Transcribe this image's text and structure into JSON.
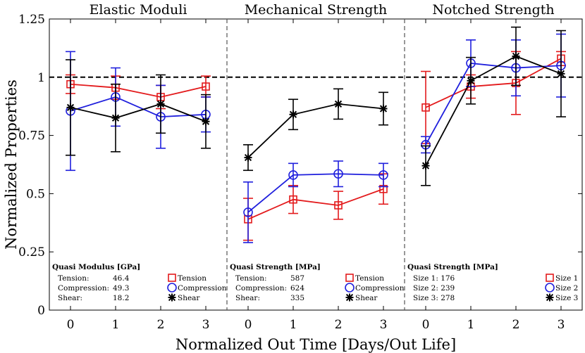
{
  "chart_data": {
    "type": "line",
    "xlabel": "Normalized Out Time [Days/Out Life]",
    "ylabel": "Normalized Properties",
    "ylim": [
      0,
      1.25
    ],
    "yticks": [
      "0",
      "0.25",
      "0.5",
      "0.75",
      "1",
      "1.25"
    ],
    "xticks": [
      "0",
      "1",
      "2",
      "3"
    ],
    "reference_line": 1.0,
    "panels": [
      {
        "title": "Elastic Moduli",
        "series": [
          {
            "name": "Tension",
            "color": "#e31a1c",
            "marker": "square",
            "x": [
              0,
              1,
              2,
              3
            ],
            "y": [
              0.97,
              0.955,
              0.915,
              0.96
            ],
            "err": [
              0.04,
              0.05,
              0.05,
              0.045
            ]
          },
          {
            "name": "Compression",
            "color": "#1f1fdd",
            "marker": "circle",
            "x": [
              0,
              1,
              2,
              3
            ],
            "y": [
              0.855,
              0.915,
              0.83,
              0.84
            ],
            "err": [
              0.255,
              0.125,
              0.135,
              0.075
            ]
          },
          {
            "name": "Shear",
            "color": "#000000",
            "marker": "asterisk",
            "x": [
              0,
              1,
              2,
              3
            ],
            "y": [
              0.87,
              0.825,
              0.885,
              0.81
            ],
            "err": [
              0.205,
              0.145,
              0.125,
              0.115
            ]
          }
        ],
        "legend_title": "Quasi Modulus [GPa]",
        "legend_values": [
          {
            "label": "Tension:",
            "value": "46.4"
          },
          {
            "label": "Compression:",
            "value": "49.3"
          },
          {
            "label": "Shear:",
            "value": "18.2"
          }
        ],
        "legend_entries": [
          "Tension",
          "Compression",
          "Shear"
        ]
      },
      {
        "title": "Mechanical Strength",
        "series": [
          {
            "name": "Tension",
            "color": "#e31a1c",
            "marker": "square",
            "x": [
              0,
              1,
              2,
              3
            ],
            "y": [
              0.39,
              0.475,
              0.45,
              0.52
            ],
            "err": [
              0.09,
              0.06,
              0.06,
              0.065
            ]
          },
          {
            "name": "Compression",
            "color": "#1f1fdd",
            "marker": "circle",
            "x": [
              0,
              1,
              2,
              3
            ],
            "y": [
              0.42,
              0.58,
              0.585,
              0.58
            ],
            "err": [
              0.13,
              0.05,
              0.055,
              0.05
            ]
          },
          {
            "name": "Shear",
            "color": "#000000",
            "marker": "asterisk",
            "x": [
              0,
              1,
              2,
              3
            ],
            "y": [
              0.655,
              0.84,
              0.885,
              0.865
            ],
            "err": [
              0.055,
              0.065,
              0.065,
              0.07
            ]
          }
        ],
        "legend_title": "Quasi Strength [MPa]",
        "legend_values": [
          {
            "label": "Tension:",
            "value": "587"
          },
          {
            "label": "Compression:",
            "value": "624"
          },
          {
            "label": "Shear:",
            "value": "335"
          }
        ],
        "legend_entries": [
          "Tension",
          "Compression",
          "Shear"
        ]
      },
      {
        "title": "Notched Strength",
        "series": [
          {
            "name": "Size 1",
            "color": "#e31a1c",
            "marker": "square",
            "x": [
              0,
              1,
              2,
              3
            ],
            "y": [
              0.87,
              0.96,
              0.975,
              1.08
            ],
            "err": [
              0.155,
              0.05,
              0.135,
              0.03
            ]
          },
          {
            "name": "Size 2",
            "color": "#1f1fdd",
            "marker": "circle",
            "x": [
              0,
              1,
              2,
              3
            ],
            "y": [
              0.71,
              1.06,
              1.04,
              1.05
            ],
            "err": [
              0.035,
              0.1,
              0.12,
              0.135
            ]
          },
          {
            "name": "Size 3",
            "color": "#000000",
            "marker": "asterisk",
            "x": [
              0,
              1,
              2,
              3
            ],
            "y": [
              0.62,
              0.985,
              1.09,
              1.015
            ],
            "err": [
              0.085,
              0.1,
              0.125,
              0.185
            ]
          }
        ],
        "legend_title": "Quasi Strength [MPa]",
        "legend_values": [
          {
            "label": "Size 1: 176",
            "value": ""
          },
          {
            "label": "Size 2: 239",
            "value": ""
          },
          {
            "label": "Size 3: 278",
            "value": ""
          }
        ],
        "legend_entries": [
          "Size 1",
          "Size 2",
          "Size 3"
        ]
      }
    ]
  }
}
